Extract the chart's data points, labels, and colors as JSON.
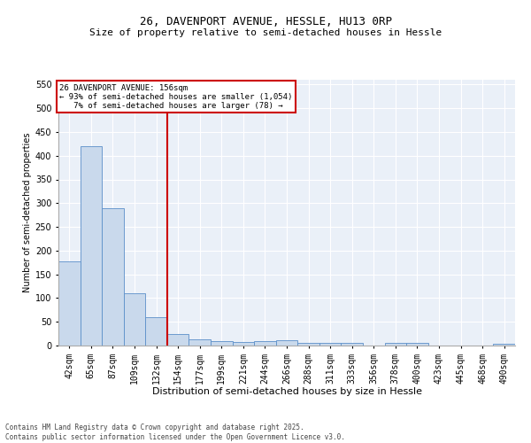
{
  "title1": "26, DAVENPORT AVENUE, HESSLE, HU13 0RP",
  "title2": "Size of property relative to semi-detached houses in Hessle",
  "xlabel": "Distribution of semi-detached houses by size in Hessle",
  "ylabel": "Number of semi-detached properties",
  "categories": [
    "42sqm",
    "65sqm",
    "87sqm",
    "109sqm",
    "132sqm",
    "154sqm",
    "177sqm",
    "199sqm",
    "221sqm",
    "244sqm",
    "266sqm",
    "288sqm",
    "311sqm",
    "333sqm",
    "356sqm",
    "378sqm",
    "400sqm",
    "423sqm",
    "445sqm",
    "468sqm",
    "490sqm"
  ],
  "values": [
    178,
    420,
    289,
    110,
    60,
    25,
    14,
    10,
    8,
    10,
    12,
    5,
    6,
    6,
    0,
    5,
    5,
    0,
    0,
    0,
    3
  ],
  "bar_color": "#c9d9ec",
  "bar_edge_color": "#5b8fc9",
  "vline_index": 5,
  "vline_color": "#cc0000",
  "annotation_line1": "26 DAVENPORT AVENUE: 156sqm",
  "annotation_line2": "← 93% of semi-detached houses are smaller (1,054)",
  "annotation_line3": "   7% of semi-detached houses are larger (78) →",
  "annotation_box_color": "#cc0000",
  "bg_color": "#eaf0f8",
  "footer": "Contains HM Land Registry data © Crown copyright and database right 2025.\nContains public sector information licensed under the Open Government Licence v3.0.",
  "ylim": [
    0,
    560
  ],
  "yticks": [
    0,
    50,
    100,
    150,
    200,
    250,
    300,
    350,
    400,
    450,
    500,
    550
  ],
  "title1_fontsize": 9,
  "title2_fontsize": 8,
  "xlabel_fontsize": 8,
  "ylabel_fontsize": 7,
  "tick_fontsize": 7,
  "footer_fontsize": 5.5
}
